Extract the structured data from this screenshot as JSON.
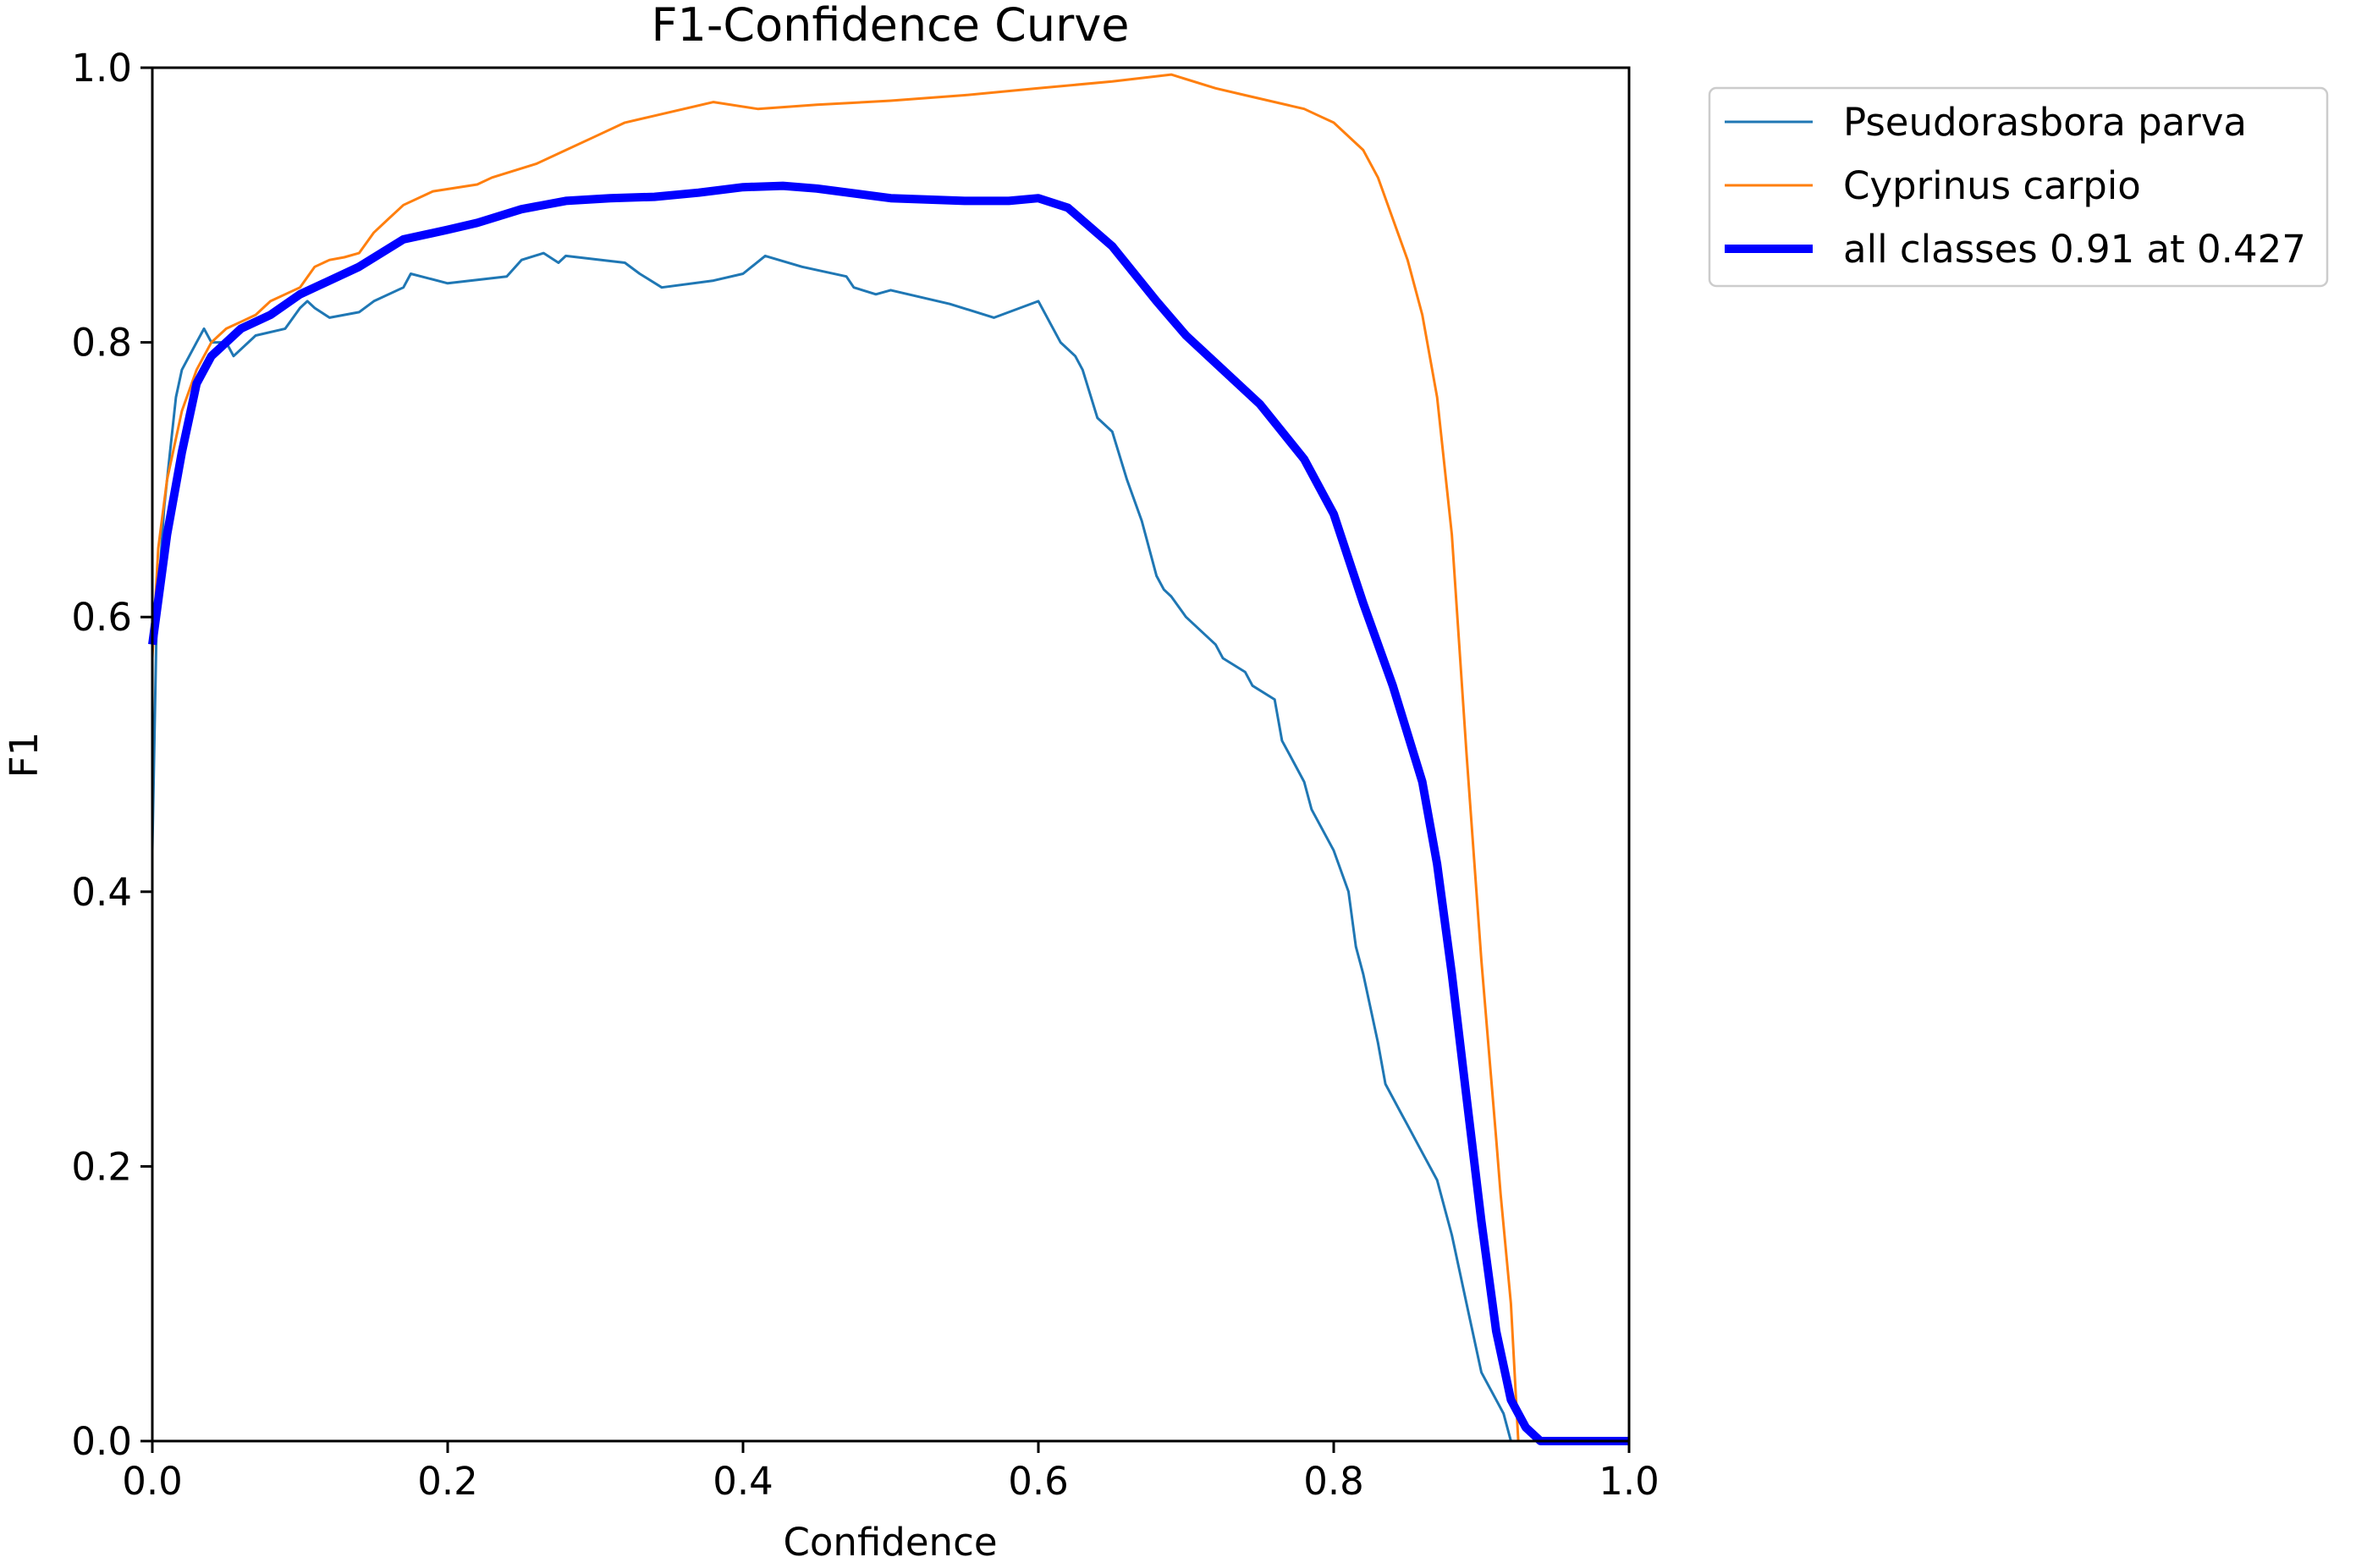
{
  "chart_data": {
    "type": "line",
    "title": "F1-Confidence Curve",
    "xlabel": "Confidence",
    "ylabel": "F1",
    "xlim": [
      0.0,
      1.0
    ],
    "ylim": [
      0.0,
      1.0
    ],
    "xticks": [
      "0.0",
      "0.2",
      "0.4",
      "0.6",
      "0.8",
      "1.0"
    ],
    "yticks": [
      "0.0",
      "0.2",
      "0.4",
      "0.6",
      "0.8",
      "1.0"
    ],
    "grid": false,
    "legend_position": "outside-top-right",
    "series": [
      {
        "name": "Pseudorasbora parva",
        "color": "#1f77b4",
        "width": 3,
        "x": [
          0.0,
          0.003,
          0.008,
          0.012,
          0.016,
          0.02,
          0.025,
          0.03,
          0.035,
          0.04,
          0.05,
          0.055,
          0.065,
          0.07,
          0.09,
          0.1,
          0.105,
          0.11,
          0.12,
          0.14,
          0.15,
          0.17,
          0.175,
          0.2,
          0.24,
          0.25,
          0.265,
          0.275,
          0.28,
          0.32,
          0.33,
          0.345,
          0.38,
          0.4,
          0.415,
          0.44,
          0.47,
          0.475,
          0.49,
          0.5,
          0.54,
          0.57,
          0.6,
          0.605,
          0.615,
          0.625,
          0.63,
          0.64,
          0.65,
          0.66,
          0.67,
          0.68,
          0.685,
          0.69,
          0.7,
          0.72,
          0.725,
          0.74,
          0.745,
          0.76,
          0.765,
          0.77,
          0.78,
          0.785,
          0.79,
          0.8,
          0.81,
          0.815,
          0.82,
          0.83,
          0.835,
          0.845,
          0.85,
          0.86,
          0.87,
          0.875,
          0.88,
          0.89,
          0.9,
          0.91,
          0.915,
          0.92,
          1.0
        ],
        "y": [
          0.43,
          0.6,
          0.68,
          0.72,
          0.76,
          0.78,
          0.79,
          0.8,
          0.81,
          0.8,
          0.8,
          0.79,
          0.8,
          0.805,
          0.81,
          0.825,
          0.83,
          0.825,
          0.818,
          0.822,
          0.83,
          0.84,
          0.85,
          0.843,
          0.848,
          0.86,
          0.865,
          0.858,
          0.863,
          0.858,
          0.85,
          0.84,
          0.845,
          0.85,
          0.863,
          0.855,
          0.848,
          0.84,
          0.835,
          0.838,
          0.828,
          0.818,
          0.83,
          0.82,
          0.8,
          0.79,
          0.78,
          0.745,
          0.735,
          0.7,
          0.67,
          0.63,
          0.62,
          0.615,
          0.6,
          0.58,
          0.57,
          0.56,
          0.55,
          0.54,
          0.51,
          0.5,
          0.48,
          0.46,
          0.45,
          0.43,
          0.4,
          0.36,
          0.34,
          0.29,
          0.26,
          0.24,
          0.23,
          0.21,
          0.19,
          0.17,
          0.15,
          0.1,
          0.05,
          0.03,
          0.02,
          0.0,
          0.0
        ]
      },
      {
        "name": "Cyprinus carpio",
        "color": "#ff7f0e",
        "width": 3,
        "x": [
          0.0,
          0.004,
          0.01,
          0.02,
          0.03,
          0.04,
          0.05,
          0.06,
          0.07,
          0.08,
          0.09,
          0.1,
          0.11,
          0.12,
          0.13,
          0.14,
          0.15,
          0.16,
          0.17,
          0.19,
          0.22,
          0.23,
          0.26,
          0.28,
          0.3,
          0.32,
          0.34,
          0.38,
          0.41,
          0.45,
          0.5,
          0.55,
          0.6,
          0.65,
          0.69,
          0.72,
          0.74,
          0.78,
          0.79,
          0.8,
          0.82,
          0.83,
          0.84,
          0.85,
          0.86,
          0.87,
          0.88,
          0.89,
          0.9,
          0.91,
          0.913,
          0.92,
          0.925,
          1.0
        ],
        "y": [
          0.57,
          0.65,
          0.7,
          0.75,
          0.78,
          0.8,
          0.81,
          0.815,
          0.82,
          0.83,
          0.835,
          0.84,
          0.855,
          0.86,
          0.862,
          0.865,
          0.88,
          0.89,
          0.9,
          0.91,
          0.915,
          0.92,
          0.93,
          0.94,
          0.95,
          0.96,
          0.965,
          0.975,
          0.97,
          0.973,
          0.976,
          0.98,
          0.985,
          0.99,
          0.995,
          0.985,
          0.98,
          0.97,
          0.965,
          0.96,
          0.94,
          0.92,
          0.89,
          0.86,
          0.82,
          0.76,
          0.66,
          0.5,
          0.35,
          0.22,
          0.18,
          0.1,
          0.0,
          0.0
        ]
      },
      {
        "name": "all classes 0.91 at 0.427",
        "color": "#0000ff",
        "width": 10,
        "x": [
          0.0,
          0.01,
          0.02,
          0.03,
          0.04,
          0.06,
          0.08,
          0.1,
          0.14,
          0.17,
          0.2,
          0.22,
          0.25,
          0.28,
          0.31,
          0.34,
          0.37,
          0.4,
          0.427,
          0.45,
          0.5,
          0.55,
          0.58,
          0.6,
          0.62,
          0.65,
          0.68,
          0.7,
          0.72,
          0.75,
          0.78,
          0.8,
          0.82,
          0.84,
          0.86,
          0.87,
          0.88,
          0.89,
          0.9,
          0.91,
          0.92,
          0.93,
          0.94,
          0.95,
          1.0
        ],
        "y": [
          0.58,
          0.66,
          0.72,
          0.77,
          0.79,
          0.81,
          0.82,
          0.835,
          0.855,
          0.875,
          0.882,
          0.887,
          0.897,
          0.903,
          0.905,
          0.906,
          0.909,
          0.913,
          0.914,
          0.912,
          0.905,
          0.903,
          0.903,
          0.905,
          0.898,
          0.87,
          0.83,
          0.805,
          0.785,
          0.755,
          0.715,
          0.675,
          0.61,
          0.55,
          0.48,
          0.42,
          0.34,
          0.25,
          0.16,
          0.08,
          0.03,
          0.01,
          0.0,
          0.0,
          0.0
        ]
      }
    ]
  }
}
